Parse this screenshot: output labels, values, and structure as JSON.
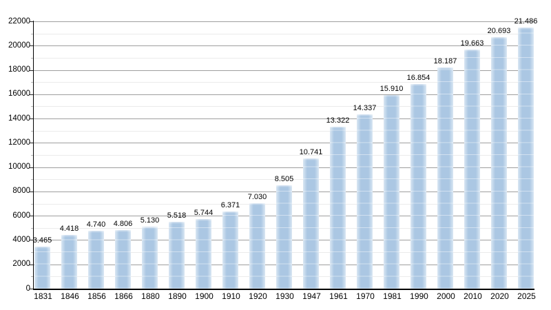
{
  "chart_data": {
    "type": "bar",
    "title": "",
    "xlabel": "",
    "ylabel": "",
    "categories": [
      "1831",
      "1846",
      "1856",
      "1866",
      "1880",
      "1890",
      "1900",
      "1910",
      "1920",
      "1930",
      "1947",
      "1961",
      "1970",
      "1981",
      "1990",
      "2000",
      "2010",
      "2020",
      "2025"
    ],
    "values": [
      3465,
      4418,
      4740,
      4806,
      5130,
      5518,
      5744,
      6371,
      7030,
      8505,
      10741,
      13322,
      14337,
      15910,
      16854,
      18187,
      19663,
      20693,
      21486
    ],
    "value_labels": [
      "3.465",
      "4.418",
      "4.740",
      "4.806",
      "5.130",
      "5.518",
      "5.744",
      "6.371",
      "7.030",
      "8.505",
      "10.741",
      "13.322",
      "14.337",
      "15.910",
      "16.854",
      "18.187",
      "19.663",
      "20.693",
      "21.486"
    ],
    "ylim": [
      0,
      22000
    ],
    "y_major_step": 2000,
    "y_minor_step": 1000,
    "y_tick_labels": [
      "0",
      "2000",
      "4000",
      "6000",
      "8000",
      "10000",
      "12000",
      "14000",
      "16000",
      "18000",
      "20000",
      "22000"
    ],
    "grid": "on",
    "legend": "none",
    "colors": {
      "background": "#ffffff",
      "bar": "#abc7e3",
      "bar_edge": "#dae7f3",
      "grid_major": "#9e9e9e",
      "grid_minor": "#ebebeb",
      "axis": "#000000",
      "text": "#000000"
    }
  }
}
